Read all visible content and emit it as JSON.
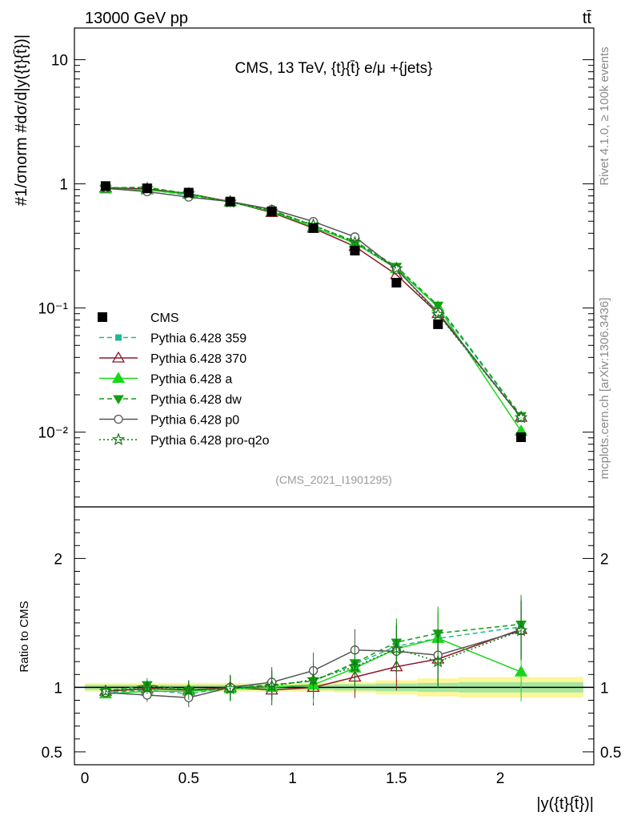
{
  "header": {
    "left_title": "13000 GeV pp",
    "right_title": "tt̄"
  },
  "side_labels": {
    "rivet": "Rivet 4.1.0, ≥ 100k events",
    "mcplots": "mcplots.cern.ch [arXiv:1306.3436]"
  },
  "chart_data": {
    "type": "line",
    "title": "CMS, 13 TeV, {t}{t̄} e/μ +{jets}",
    "analysis_tag": "(CMS_2021_I1901295)",
    "xlabel": "|y({t}{t̄})|",
    "ylabel": "#1/σnorm #dσ/d|y({t}{t̄})|",
    "ratio_ylabel": "Ratio to CMS",
    "yscale": "log",
    "xlim": [
      -0.05,
      2.45
    ],
    "ylim": [
      0.0025,
      18
    ],
    "ratio_ylim": [
      0.4,
      2.4
    ],
    "x_ticks": [
      "0",
      "0.5",
      "1",
      "1.5",
      "2"
    ],
    "y_ticks": [
      "10",
      "1",
      "10⁻¹",
      "10⁻²"
    ],
    "ratio_ticks": [
      "2",
      "1",
      "0.5"
    ],
    "ratio_ticks_right": [
      "2",
      "1",
      "0.5"
    ],
    "x": [
      0.1,
      0.3,
      0.5,
      0.7,
      0.9,
      1.1,
      1.3,
      1.5,
      1.7,
      2.1
    ],
    "data": {
      "name": "CMS",
      "values": [
        0.96,
        0.92,
        0.85,
        0.72,
        0.6,
        0.44,
        0.29,
        0.16,
        0.074,
        0.0091
      ],
      "band_edges": [
        0.0,
        0.2,
        0.4,
        0.6,
        0.8,
        1.0,
        1.2,
        1.4,
        1.6,
        1.8,
        2.4
      ],
      "band_inner": [
        0.02,
        0.02,
        0.02,
        0.02,
        0.02,
        0.02,
        0.025,
        0.03,
        0.035,
        0.04
      ],
      "band_outer": [
        0.035,
        0.035,
        0.035,
        0.035,
        0.035,
        0.035,
        0.04,
        0.055,
        0.07,
        0.08
      ]
    },
    "series": [
      {
        "name": "Pythia 6.428 359",
        "color": "#1fb896",
        "dash": "6,4",
        "marker": "square",
        "ratio": [
          0.96,
          0.98,
          0.95,
          1.0,
          1.02,
          1.05,
          1.18,
          1.32,
          1.38,
          1.47
        ]
      },
      {
        "name": "Pythia 6.428 370",
        "color": "#8b1a2b",
        "dash": "",
        "marker": "triangle-open",
        "ratio": [
          0.97,
          0.99,
          0.98,
          1.0,
          0.98,
          1.0,
          1.08,
          1.16,
          1.22,
          1.45
        ]
      },
      {
        "name": "Pythia 6.428 a",
        "color": "#1ad61a",
        "dash": "",
        "marker": "triangle",
        "ratio": [
          0.95,
          0.97,
          0.97,
          0.99,
          1.0,
          1.02,
          1.15,
          1.3,
          1.38,
          1.12
        ]
      },
      {
        "name": "Pythia 6.428 dw",
        "color": "#10a010",
        "dash": "6,4",
        "marker": "triangle-down",
        "ratio": [
          0.97,
          1.02,
          0.98,
          0.99,
          1.02,
          1.05,
          1.19,
          1.35,
          1.42,
          1.49
        ]
      },
      {
        "name": "Pythia 6.428 p0",
        "color": "#555555",
        "dash": "",
        "marker": "circle-open",
        "ratio": [
          0.96,
          0.94,
          0.92,
          1.0,
          1.04,
          1.13,
          1.29,
          1.28,
          1.25,
          1.44
        ]
      },
      {
        "name": "Pythia 6.428 pro-q2o",
        "color": "#0e7a0e",
        "dash": "2,3",
        "marker": "star",
        "ratio": [
          0.97,
          1.0,
          0.98,
          0.99,
          1.01,
          1.06,
          1.16,
          1.3,
          1.2,
          1.44
        ]
      }
    ]
  }
}
